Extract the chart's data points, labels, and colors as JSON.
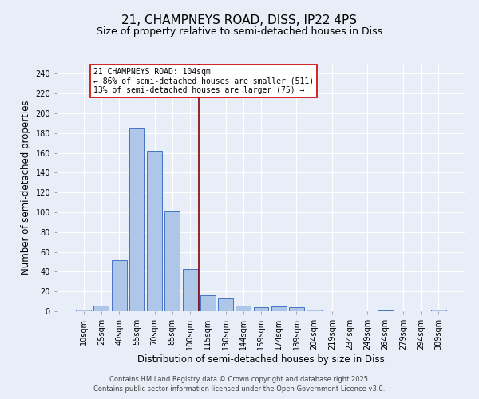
{
  "title_line1": "21, CHAMPNEYS ROAD, DISS, IP22 4PS",
  "title_line2": "Size of property relative to semi-detached houses in Diss",
  "xlabel": "Distribution of semi-detached houses by size in Diss",
  "ylabel": "Number of semi-detached properties",
  "categories": [
    "10sqm",
    "25sqm",
    "40sqm",
    "55sqm",
    "70sqm",
    "85sqm",
    "100sqm",
    "115sqm",
    "130sqm",
    "144sqm",
    "159sqm",
    "174sqm",
    "189sqm",
    "204sqm",
    "219sqm",
    "234sqm",
    "249sqm",
    "264sqm",
    "279sqm",
    "294sqm",
    "309sqm"
  ],
  "values": [
    2,
    6,
    52,
    185,
    162,
    101,
    43,
    16,
    13,
    6,
    4,
    5,
    4,
    2,
    0,
    0,
    0,
    1,
    0,
    0,
    2
  ],
  "bar_color": "#aec6e8",
  "bar_edge_color": "#4472c4",
  "bg_color": "#e8eef7",
  "grid_color": "#ffffff",
  "vline_color": "#8b0000",
  "annotation_line1": "21 CHAMPNEYS ROAD: 104sqm",
  "annotation_line2": "← 86% of semi-detached houses are smaller (511)",
  "annotation_line3": "13% of semi-detached houses are larger (75) →",
  "annotation_box_color": "#ffffff",
  "annotation_box_edge": "#cc0000",
  "ylim": [
    0,
    250
  ],
  "yticks": [
    0,
    20,
    40,
    60,
    80,
    100,
    120,
    140,
    160,
    180,
    200,
    220,
    240
  ],
  "footer_line1": "Contains HM Land Registry data © Crown copyright and database right 2025.",
  "footer_line2": "Contains public sector information licensed under the Open Government Licence v3.0.",
  "title_fontsize": 11,
  "subtitle_fontsize": 9,
  "tick_fontsize": 7,
  "label_fontsize": 8.5,
  "annotation_fontsize": 7,
  "footer_fontsize": 6
}
